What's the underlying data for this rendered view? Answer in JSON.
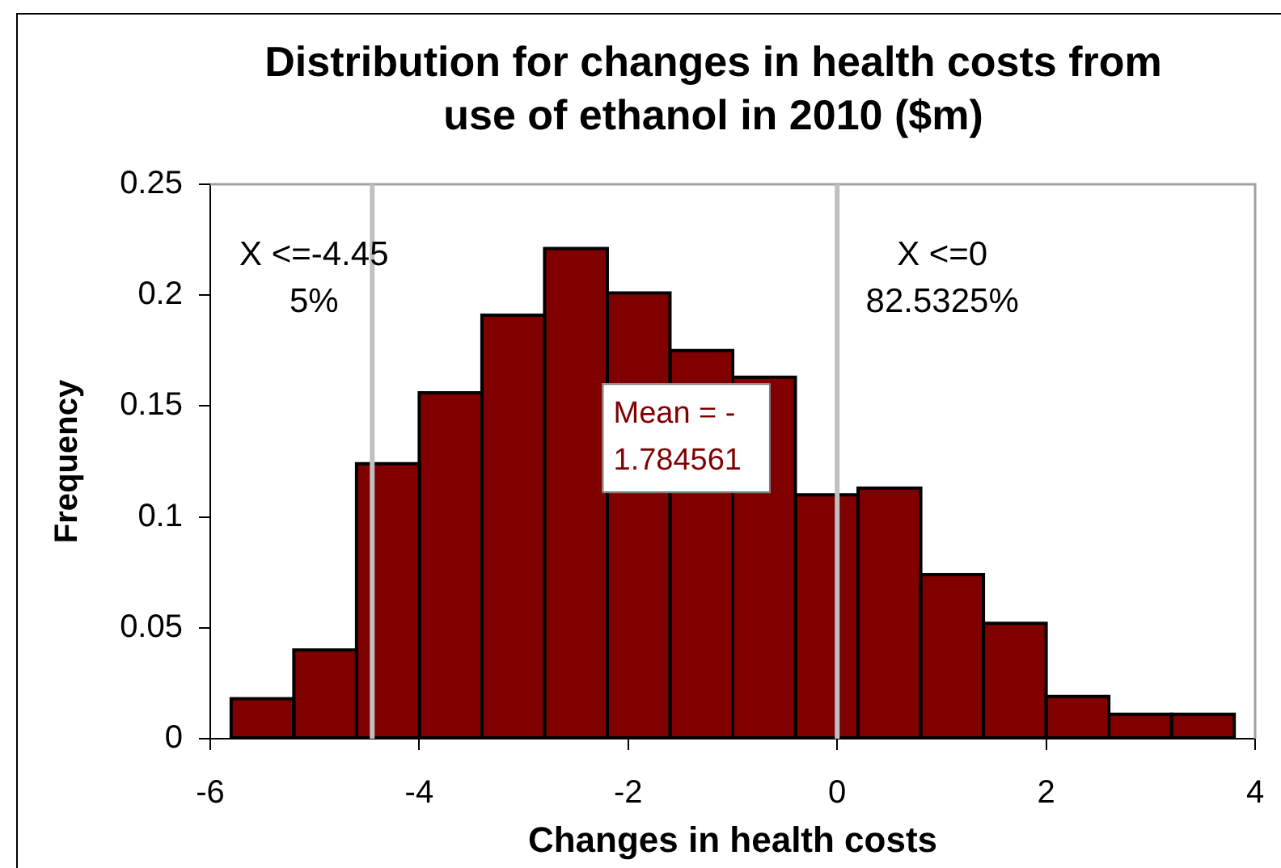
{
  "chart_data": {
    "type": "histogram",
    "title": "Distribution for changes in health costs from use of ethanol in 2010 ($m)",
    "xlabel": "Changes in health costs",
    "ylabel": "Frequency",
    "bins": [
      -5.8,
      -5.2,
      -4.6,
      -4,
      -3.4,
      -2.8,
      -2.2,
      -1.6,
      -1,
      -0.4,
      0.2,
      0.8,
      1.4,
      2,
      2.6,
      3.2,
      3.8
    ],
    "values": [
      0.018,
      0.04,
      0.124,
      0.156,
      0.191,
      0.221,
      0.201,
      0.175,
      0.163,
      0.11,
      0.113,
      0.074,
      0.052,
      0.019,
      0.011,
      0.011
    ],
    "color": "#800000",
    "xlim": [
      -6,
      4
    ],
    "xticks": [
      -6,
      -4,
      -2,
      0,
      2,
      4
    ],
    "ylim": [
      0,
      0.25
    ],
    "yticks": [
      0,
      0.05,
      0.1,
      0.15,
      0.2,
      0.25
    ],
    "ref_lines": [
      {
        "axis": "x",
        "value": -4.45,
        "label": "X <=-4.45\n5%",
        "color": "#c0c0c0"
      },
      {
        "axis": "x",
        "value": 0,
        "label": "X <=0\n82.5325%",
        "color": "#c0c0c0"
      }
    ],
    "annotations": [
      "Mean = -\n1.784561"
    ]
  }
}
